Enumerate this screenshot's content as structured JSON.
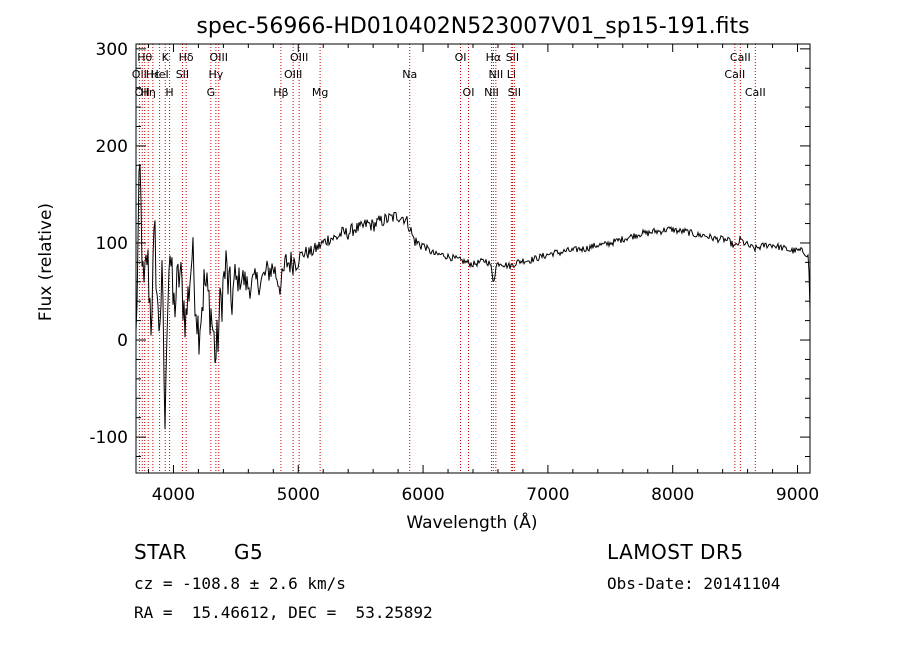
{
  "chart_data": {
    "type": "line",
    "title": "spec-56966-HD010402N523007V01_sp15-191.fits",
    "xlabel": "Wavelength (Å)",
    "ylabel": "Flux (relative)",
    "xlim": [
      3700,
      9100
    ],
    "ylim": [
      -137,
      305
    ],
    "xticks": [
      4000,
      5000,
      6000,
      7000,
      8000,
      9000
    ],
    "yticks": [
      -100,
      0,
      100,
      200,
      300
    ],
    "grid": false,
    "line_color": "#000000",
    "marker_color": "#cc0000",
    "series": [
      {
        "x": [
          3700,
          3730,
          3760,
          3790,
          3820,
          3850,
          3880,
          3910,
          3935,
          3950,
          3970,
          4000,
          4050,
          4100,
          4150,
          4200,
          4250,
          4300,
          4340,
          4380,
          4420,
          4460,
          4500,
          4550,
          4600,
          4650,
          4700,
          4750,
          4800,
          4861,
          4900,
          4950,
          5000,
          5050,
          5100,
          5150,
          5200,
          5250,
          5300,
          5350,
          5400,
          5450,
          5500,
          5550,
          5600,
          5650,
          5700,
          5750,
          5800,
          5850,
          5890,
          5920,
          5950,
          6000,
          6050,
          6100,
          6150,
          6200,
          6250,
          6300,
          6350,
          6400,
          6450,
          6500,
          6540,
          6563,
          6590,
          6620,
          6650,
          6700,
          6750,
          6800,
          6850,
          6900,
          6950,
          7000,
          7050,
          7100,
          7150,
          7200,
          7250,
          7300,
          7350,
          7400,
          7450,
          7500,
          7550,
          7600,
          7650,
          7700,
          7750,
          7800,
          7850,
          7900,
          7950,
          8000,
          8050,
          8100,
          8150,
          8200,
          8250,
          8300,
          8350,
          8400,
          8450,
          8498,
          8520,
          8542,
          8570,
          8600,
          8620,
          8662,
          8700,
          8750,
          8800,
          8850,
          8900,
          8950,
          9000,
          9030,
          9060,
          9080,
          9090,
          9100
        ],
        "y": [
          0,
          180,
          40,
          90,
          20,
          110,
          10,
          60,
          -105,
          40,
          100,
          30,
          70,
          20,
          90,
          10,
          60,
          30,
          -20,
          40,
          75,
          40,
          60,
          65,
          55,
          60,
          60,
          70,
          75,
          55,
          80,
          80,
          85,
          90,
          90,
          95,
          100,
          105,
          105,
          110,
          110,
          115,
          115,
          120,
          118,
          122,
          124,
          126,
          128,
          126,
          118,
          105,
          100,
          98,
          92,
          88,
          88,
          86,
          84,
          82,
          80,
          78,
          80,
          82,
          78,
          60,
          78,
          80,
          78,
          76,
          80,
          82,
          82,
          84,
          86,
          88,
          90,
          90,
          92,
          92,
          94,
          94,
          96,
          98,
          98,
          100,
          102,
          104,
          106,
          108,
          110,
          110,
          112,
          112,
          114,
          114,
          112,
          112,
          110,
          108,
          108,
          106,
          104,
          104,
          102,
          96,
          98,
          104,
          100,
          98,
          96,
          94,
          96,
          98,
          98,
          96,
          94,
          92,
          92,
          92,
          90,
          88,
          82,
          30
        ]
      }
    ],
    "line_markers": [
      {
        "x": 3727,
        "label": "OII",
        "row": 2
      },
      {
        "x": 3750,
        "label": "OII",
        "row": 3
      },
      {
        "x": 3770,
        "label": "Hθ",
        "row": 1
      },
      {
        "x": 3798,
        "label": "Hη",
        "row": 3
      },
      {
        "x": 3835,
        "label": "Hε",
        "row": 2
      },
      {
        "x": 3889,
        "label": "HeI",
        "row": 2
      },
      {
        "x": 3934,
        "label": "K",
        "row": 1
      },
      {
        "x": 3969,
        "label": "H",
        "row": 3
      },
      {
        "x": 4072,
        "label": "SII",
        "row": 2
      },
      {
        "x": 4102,
        "label": "Hδ",
        "row": 1
      },
      {
        "x": 4300,
        "label": "G",
        "row": 3
      },
      {
        "x": 4340,
        "label": "Hγ",
        "row": 2
      },
      {
        "x": 4363,
        "label": "OIII",
        "row": 1
      },
      {
        "x": 4861,
        "label": "Hβ",
        "row": 3
      },
      {
        "x": 4959,
        "label": "OIII",
        "row": 2
      },
      {
        "x": 5007,
        "label": "OIII",
        "row": 1
      },
      {
        "x": 5175,
        "label": "Mg",
        "row": 3
      },
      {
        "x": 5893,
        "label": "Na",
        "row": 2
      },
      {
        "x": 6300,
        "label": "OI",
        "row": 1
      },
      {
        "x": 6364,
        "label": "OI",
        "row": 3
      },
      {
        "x": 6548,
        "label": "NII",
        "row": 3
      },
      {
        "x": 6563,
        "label": "Hα",
        "row": 1
      },
      {
        "x": 6583,
        "label": "NII",
        "row": 2
      },
      {
        "x": 6707,
        "label": "Li",
        "row": 2
      },
      {
        "x": 6716,
        "label": "SII",
        "row": 1
      },
      {
        "x": 6731,
        "label": "SII",
        "row": 3
      },
      {
        "x": 8498,
        "label": "CaII",
        "row": 2
      },
      {
        "x": 8542,
        "label": "CaII",
        "row": 1
      },
      {
        "x": 8662,
        "label": "CaII",
        "row": 3
      }
    ]
  },
  "info": {
    "class_label": "STAR",
    "subclass": "G5",
    "survey": "LAMOST DR5",
    "cz": "cz = -108.8 ± 2.6 km/s",
    "obs_date": "Obs-Date: 20141104",
    "coords": "RA =  15.46612, DEC =  53.25892"
  }
}
